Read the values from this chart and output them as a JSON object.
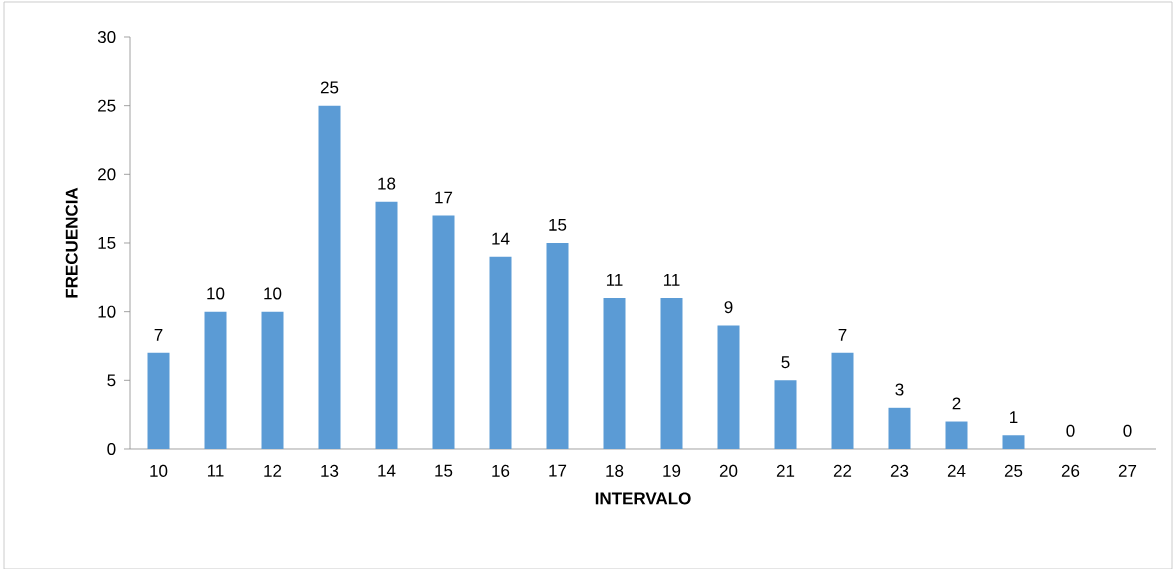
{
  "chart_data": {
    "type": "bar",
    "xlabel": "INTERVALO",
    "ylabel": "FRECUENCIA",
    "categories": [
      "10",
      "11",
      "12",
      "13",
      "14",
      "15",
      "16",
      "17",
      "18",
      "19",
      "20",
      "21",
      "22",
      "23",
      "24",
      "25",
      "26",
      "27"
    ],
    "values": [
      7,
      10,
      10,
      25,
      18,
      17,
      14,
      15,
      11,
      11,
      9,
      5,
      7,
      3,
      2,
      1,
      0,
      0
    ],
    "color": "#5b9bd5",
    "ylim": [
      0,
      30
    ],
    "yticks": [
      0,
      5,
      10,
      15,
      20,
      25,
      30
    ],
    "data_labels": true
  }
}
